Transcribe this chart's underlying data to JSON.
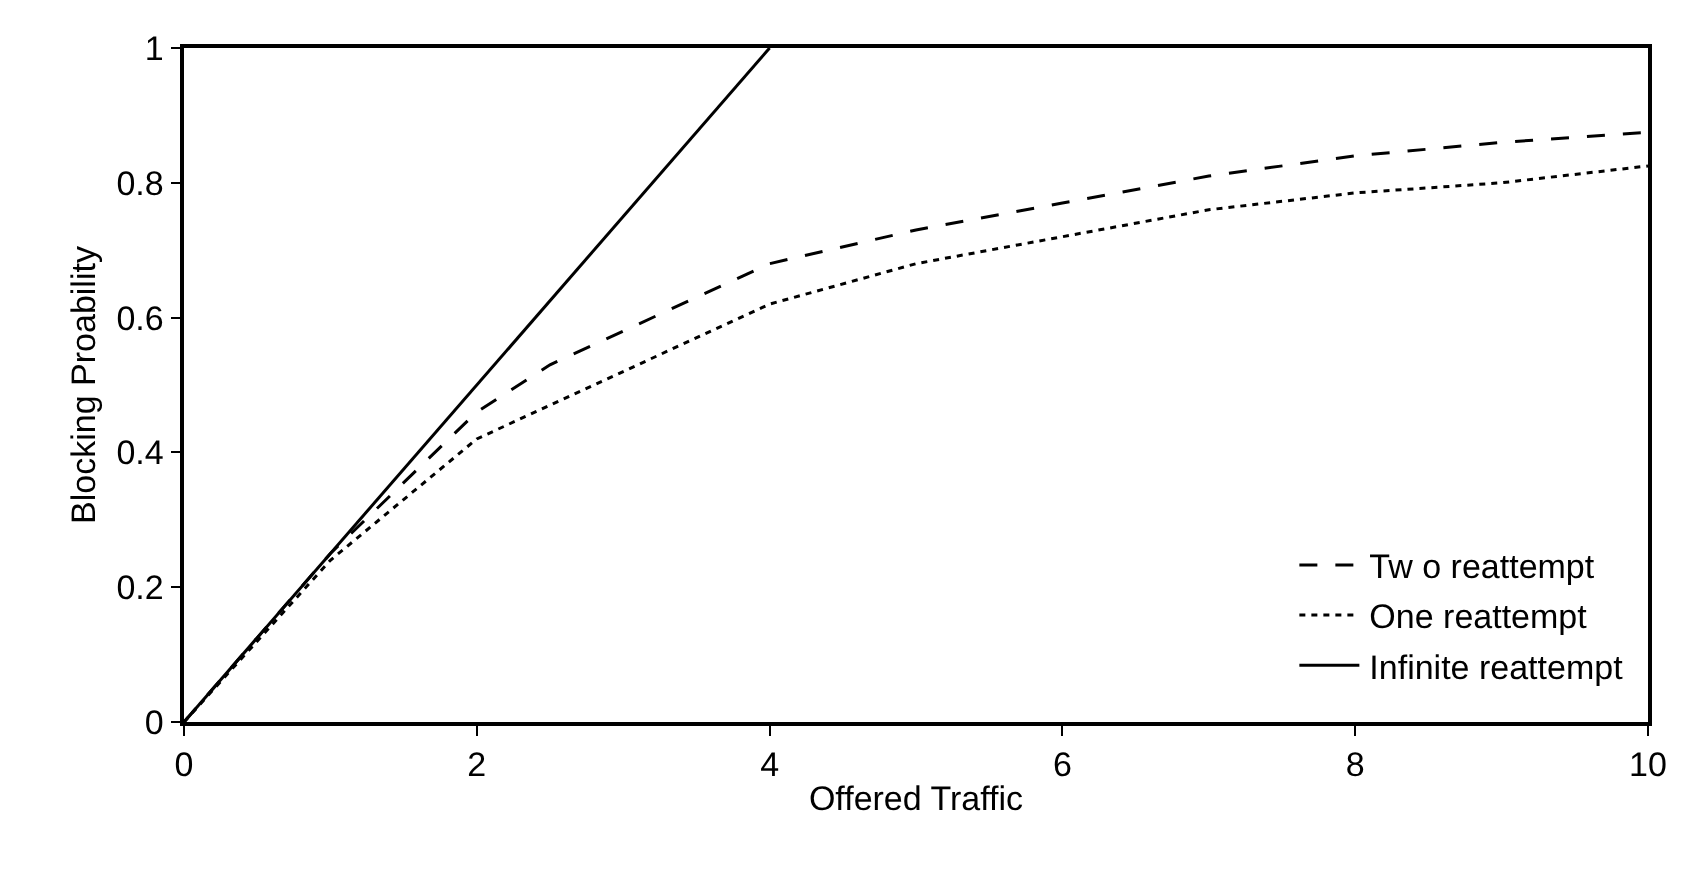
{
  "chart_data": {
    "type": "line",
    "xlabel": "Offered Traffic",
    "ylabel": "Blocking Proability",
    "xlim": [
      0,
      10
    ],
    "ylim": [
      0,
      1
    ],
    "xticks": [
      0,
      2,
      4,
      6,
      8,
      10
    ],
    "yticks": [
      0,
      0.2,
      0.4,
      0.6,
      0.8,
      1
    ],
    "legend": "bottom right",
    "series": [
      {
        "name": "Tw o reattempt",
        "color": "#000000",
        "line_style": "dashed",
        "x": [
          0,
          1,
          2,
          2.5,
          3,
          4,
          5,
          6,
          7,
          8,
          9,
          10
        ],
        "values": [
          0,
          0.25,
          0.46,
          0.53,
          0.58,
          0.68,
          0.73,
          0.77,
          0.81,
          0.84,
          0.86,
          0.875
        ]
      },
      {
        "name": "One reattempt",
        "color": "#000000",
        "line_style": "dotted",
        "x": [
          0,
          1,
          2,
          3,
          4,
          5,
          6,
          7,
          8,
          9,
          10
        ],
        "values": [
          0,
          0.24,
          0.42,
          0.52,
          0.62,
          0.68,
          0.72,
          0.76,
          0.785,
          0.8,
          0.825
        ]
      },
      {
        "name": "Infinite reattempt",
        "color": "#000000",
        "line_style": "solid",
        "x": [
          0,
          4
        ],
        "values": [
          0,
          1
        ]
      }
    ]
  }
}
